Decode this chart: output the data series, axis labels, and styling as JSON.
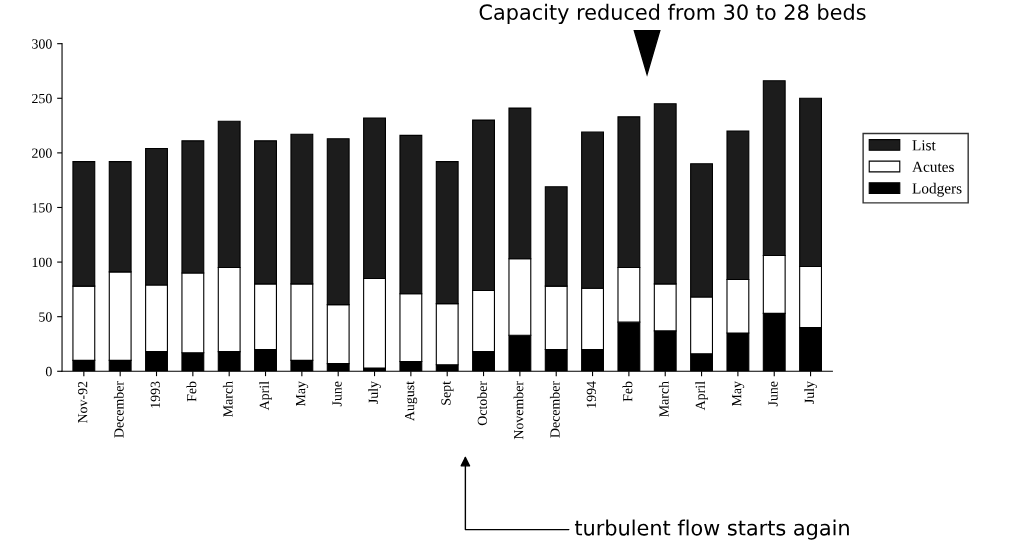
{
  "chart_data": {
    "type": "bar",
    "stacked": true,
    "categories": [
      "Nov-92",
      "December",
      "1993",
      "Feb",
      "March",
      "April",
      "May",
      "June",
      "July",
      "August",
      "Sept",
      "October",
      "November",
      "December",
      "1994",
      "Feb",
      "March",
      "April",
      "May",
      "June",
      "July"
    ],
    "series": [
      {
        "name": "Lodgers",
        "color": "#000000",
        "values": [
          10,
          10,
          18,
          17,
          18,
          20,
          10,
          7,
          3,
          9,
          6,
          18,
          33,
          20,
          20,
          45,
          37,
          16,
          35,
          53,
          40
        ]
      },
      {
        "name": "Acutes",
        "color": "#ffffff",
        "values": [
          68,
          81,
          61,
          73,
          77,
          60,
          70,
          54,
          82,
          62,
          56,
          56,
          70,
          58,
          56,
          50,
          43,
          52,
          49,
          53,
          56
        ]
      },
      {
        "name": "List",
        "color": "#1c1c1c",
        "values": [
          114,
          101,
          125,
          121,
          134,
          131,
          137,
          152,
          147,
          145,
          130,
          156,
          138,
          91,
          143,
          138,
          165,
          122,
          136,
          160,
          154
        ]
      }
    ],
    "ylim": [
      0,
      300
    ],
    "yticks": [
      0,
      50,
      100,
      150,
      200,
      250,
      300
    ],
    "grid": false,
    "legend": "right",
    "annotations": [
      "Capacity reduced from 30 to 28 beds",
      "turbulent flow starts again"
    ]
  }
}
